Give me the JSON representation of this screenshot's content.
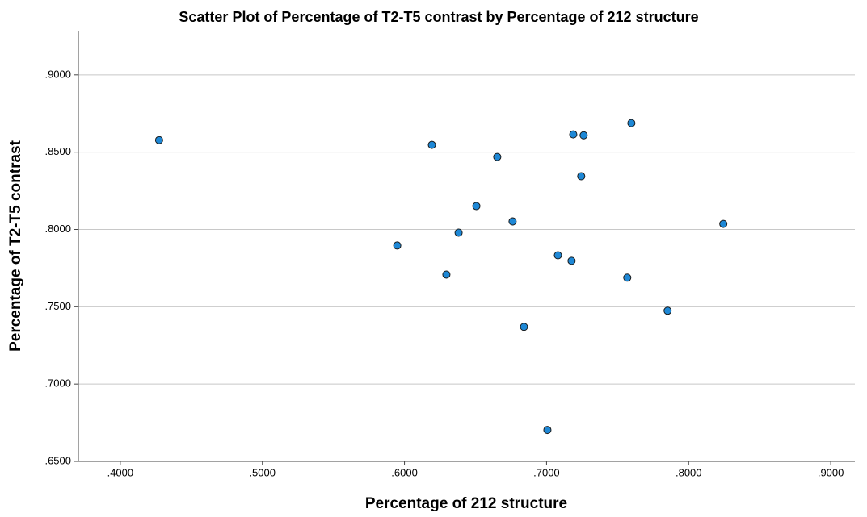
{
  "chart_data": {
    "type": "scatter",
    "title": "Scatter Plot of Percentage of T2-T5 contrast by Percentage of 212 structure",
    "x_label": "Percentage of 212 structure",
    "y_label": "Percentage of T2-T5 contrast",
    "color": "#1e88d6",
    "grid": true,
    "xlim": [
      0.3705,
      0.917
    ],
    "ylim": [
      0.65,
      0.9286
    ],
    "xticks": [
      {
        "value": 0.4,
        "label": ".4000"
      },
      {
        "value": 0.5,
        "label": ".5000"
      },
      {
        "value": 0.6,
        "label": ".6000"
      },
      {
        "value": 0.7,
        "label": ".7000"
      },
      {
        "value": 0.8,
        "label": ".8000"
      },
      {
        "value": 0.9,
        "label": ".9000"
      }
    ],
    "yticks": [
      {
        "value": 0.65,
        "label": ".6500"
      },
      {
        "value": 0.7,
        "label": ".7000"
      },
      {
        "value": 0.75,
        "label": ".7500"
      },
      {
        "value": 0.8,
        "label": ".8000"
      },
      {
        "value": 0.85,
        "label": ".8500"
      },
      {
        "value": 0.9,
        "label": ".9000"
      }
    ],
    "x": [
      0.4273,
      0.6193,
      0.6653,
      0.7188,
      0.7261,
      0.7597,
      0.7244,
      0.6506,
      0.6761,
      0.6381,
      0.5949,
      0.8244,
      0.708,
      0.7176,
      0.6295,
      0.7568,
      0.7852,
      0.6841,
      0.7006
    ],
    "y": [
      0.8578,
      0.8547,
      0.8469,
      0.8615,
      0.8609,
      0.8688,
      0.8344,
      0.8151,
      0.8052,
      0.7979,
      0.7896,
      0.8036,
      0.7833,
      0.7797,
      0.7708,
      0.7688,
      0.7474,
      0.737,
      0.6703
    ]
  }
}
